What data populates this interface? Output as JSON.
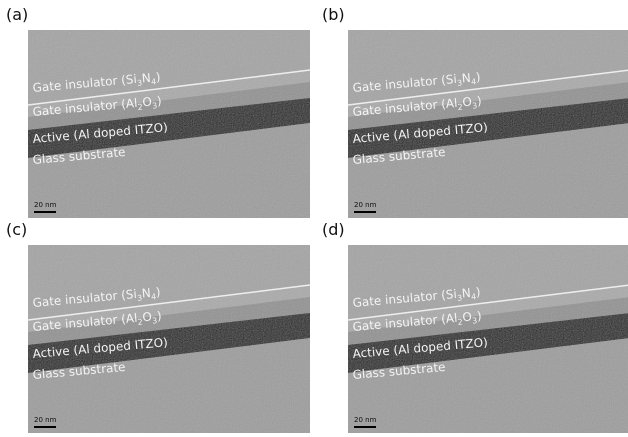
{
  "panels": [
    {
      "label": "(a)",
      "layers": [
        [
          "Gate insulator (Si",
          "3",
          "N",
          "4",
          ")"
        ],
        [
          "Gate insulator (Al",
          "2",
          "O",
          "3",
          ")"
        ],
        [
          "Active (Al doped ITZO)"
        ],
        [
          "Glass substrate"
        ]
      ],
      "scale_bar": "20 nm"
    },
    {
      "label": "(b)",
      "layers": [
        [
          "Gate insulator (Si",
          "3",
          "N",
          "4",
          ")"
        ],
        [
          "Gate insulator (Al",
          "2",
          "O",
          "3",
          ")"
        ],
        [
          "Active (Al doped ITZO)"
        ],
        [
          "Glass substrate"
        ]
      ],
      "scale_bar": "20 nm"
    },
    {
      "label": "(c)",
      "layers": [
        [
          "Gate insulator (Si",
          "3",
          "N",
          "4",
          ")"
        ],
        [
          "Gate insulator (Al",
          "2",
          "O",
          "3",
          ")"
        ],
        [
          "Active (Al doped ITZO)"
        ],
        [
          "Glass substrate"
        ]
      ],
      "scale_bar": "20 nm"
    },
    {
      "label": "(d)",
      "layers": [
        [
          "Gate insulator (Si",
          "3",
          "N",
          "4",
          ")"
        ],
        [
          "Gate insulator (Al",
          "2",
          "O",
          "3",
          ")"
        ],
        [
          "Active (Al doped ITZO)"
        ],
        [
          "Glass substrate"
        ]
      ],
      "scale_bar": "20 nm"
    }
  ]
}
